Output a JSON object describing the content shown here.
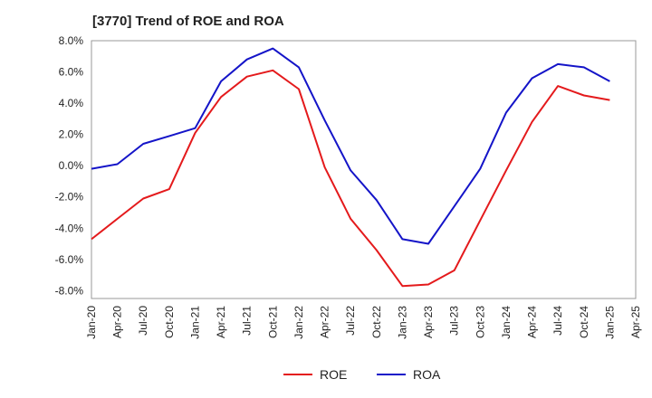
{
  "chart_data": {
    "type": "line",
    "title": "[3770]  Trend of ROE and ROA",
    "x": [
      "Jan-20",
      "Apr-20",
      "Jul-20",
      "Oct-20",
      "Jan-21",
      "Apr-21",
      "Jul-21",
      "Oct-21",
      "Jan-22",
      "Apr-22",
      "Jul-22",
      "Oct-22",
      "Jan-23",
      "Apr-23",
      "Jul-23",
      "Oct-23",
      "Jan-24",
      "Apr-24",
      "Jul-24",
      "Oct-24",
      "Jan-25"
    ],
    "x_ticks": [
      "Jan-20",
      "Apr-20",
      "Jul-20",
      "Oct-20",
      "Jan-21",
      "Apr-21",
      "Jul-21",
      "Oct-21",
      "Jan-22",
      "Apr-22",
      "Jul-22",
      "Oct-22",
      "Jan-23",
      "Apr-23",
      "Jul-23",
      "Oct-23",
      "Jan-24",
      "Apr-24",
      "Jul-24",
      "Oct-24",
      "Jan-25",
      "Apr-25"
    ],
    "y_ticks": [
      "8.0%",
      "6.0%",
      "4.0%",
      "2.0%",
      "0.0%",
      "-2.0%",
      "-4.0%",
      "-6.0%",
      "-8.0%"
    ],
    "ylim": [
      -8.5,
      8.0
    ],
    "ylabel": "",
    "xlabel": "",
    "grid": true,
    "legend_position": "bottom",
    "series": [
      {
        "name": "ROE",
        "color": "#e41a1c",
        "values": [
          -4.7,
          -3.4,
          -2.1,
          -1.5,
          2.1,
          4.4,
          5.7,
          6.1,
          4.9,
          -0.1,
          -3.4,
          -5.4,
          -7.7,
          -7.6,
          -6.7,
          -3.5,
          -0.3,
          2.8,
          5.1,
          4.5,
          4.2
        ]
      },
      {
        "name": "ROA",
        "color": "#1414c8",
        "values": [
          -0.2,
          0.1,
          1.4,
          1.9,
          2.4,
          5.4,
          6.8,
          7.5,
          6.3,
          2.9,
          -0.3,
          -2.2,
          -4.7,
          -5.0,
          -2.6,
          -0.2,
          3.4,
          5.6,
          6.5,
          6.3,
          5.4
        ]
      }
    ]
  }
}
